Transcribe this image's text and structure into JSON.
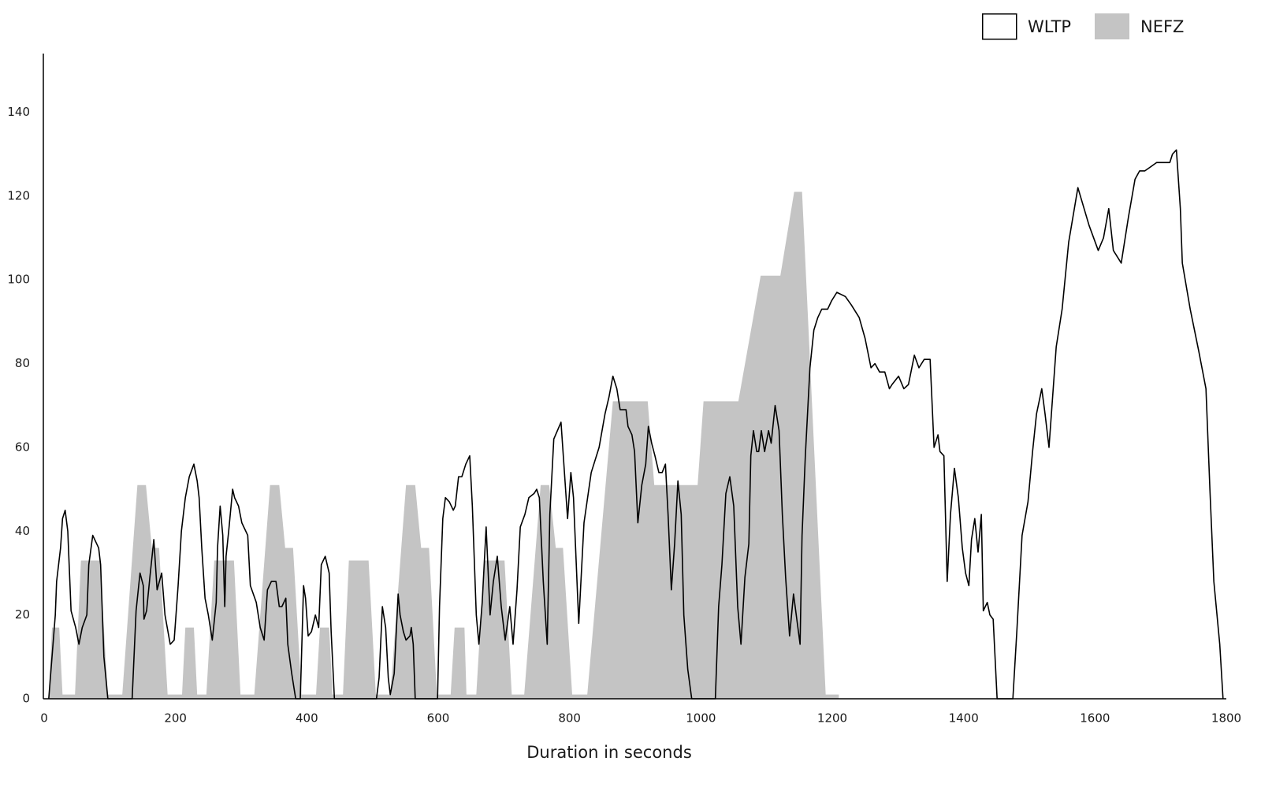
{
  "chart_data": {
    "type": "line",
    "xlabel": "Duration in seconds",
    "xlim": [
      0,
      1800
    ],
    "ylim": [
      0,
      154
    ],
    "xticks": [
      0,
      200,
      400,
      600,
      800,
      1000,
      1200,
      1400,
      1600,
      1800
    ],
    "yticks": [
      0,
      20,
      40,
      60,
      80,
      100,
      120,
      140
    ],
    "grid": false,
    "legend": "top-right",
    "series": [
      {
        "name": "WLTP",
        "type": "line",
        "color": "#000000",
        "x": [
          7,
          17,
          19,
          25,
          28,
          32,
          36,
          41,
          48,
          53,
          58,
          65,
          68,
          74,
          83,
          86,
          91,
          97,
          134,
          140,
          146,
          151,
          152,
          156,
          161,
          167,
          172,
          179,
          184,
          192,
          198,
          204,
          209,
          215,
          221,
          228,
          233,
          236,
          240,
          245,
          250,
          256,
          262,
          264,
          268,
          272,
          275,
          277,
          281,
          287,
          290,
          296,
          301,
          310,
          314,
          323,
          329,
          335,
          340,
          346,
          353,
          358,
          362,
          368,
          371,
          377,
          383,
          390,
          395,
          398,
          402,
          407,
          413,
          418,
          422,
          428,
          434,
          437,
          442,
          506,
          510,
          515,
          520,
          524,
          527,
          533,
          539,
          542,
          547,
          551,
          557,
          559,
          562,
          565,
          599,
          602,
          607,
          611,
          617,
          623,
          626,
          631,
          636,
          642,
          648,
          652,
          658,
          662,
          667,
          673,
          679,
          684,
          690,
          696,
          702,
          709,
          714,
          720,
          725,
          732,
          738,
          746,
          750,
          754,
          760,
          766,
          770,
          776,
          787,
          797,
          802,
          806,
          814,
          822,
          833,
          845,
          854,
          860,
          866,
          872,
          877,
          886,
          889,
          895,
          899,
          904,
          910,
          916,
          920,
          925,
          930,
          936,
          941,
          946,
          950,
          955,
          960,
          965,
          970,
          974,
          980,
          986,
          1022,
          1027,
          1032,
          1038,
          1044,
          1050,
          1056,
          1061,
          1067,
          1073,
          1076,
          1080,
          1085,
          1088,
          1092,
          1097,
          1103,
          1107,
          1113,
          1119,
          1124,
          1129,
          1135,
          1141,
          1146,
          1151,
          1154,
          1159,
          1166,
          1172,
          1178,
          1184,
          1193,
          1199,
          1207,
          1220,
          1229,
          1241,
          1250,
          1259,
          1265,
          1272,
          1280,
          1287,
          1291,
          1301,
          1309,
          1316,
          1325,
          1332,
          1340,
          1349,
          1355,
          1361,
          1364,
          1370,
          1375,
          1380,
          1386,
          1392,
          1398,
          1403,
          1408,
          1412,
          1417,
          1422,
          1427,
          1430,
          1436,
          1440,
          1445,
          1451,
          1475,
          1481,
          1489,
          1498,
          1505,
          1511,
          1519,
          1524,
          1530,
          1541,
          1550,
          1560,
          1574,
          1591,
          1605,
          1613,
          1621,
          1628,
          1640,
          1651,
          1661,
          1668,
          1676,
          1685,
          1694,
          1704,
          1714,
          1718,
          1724,
          1730,
          1733,
          1745,
          1758,
          1769,
          1775,
          1781,
          1790,
          1795
        ],
        "values": [
          0,
          20,
          28,
          36,
          43,
          45,
          40,
          21,
          17,
          13,
          17,
          20,
          32,
          39,
          36,
          32,
          10,
          0,
          0,
          21,
          30,
          27,
          19,
          21,
          29,
          38,
          26,
          30,
          20,
          13,
          14,
          27,
          40,
          48,
          53,
          56,
          52,
          48,
          36,
          24,
          20,
          14,
          23,
          36,
          46,
          39,
          22,
          34,
          40,
          50,
          48,
          46,
          42,
          39,
          27,
          23,
          17,
          14,
          26,
          28,
          28,
          22,
          22,
          24,
          13,
          6,
          0,
          0,
          27,
          24,
          15,
          16,
          20,
          17,
          32,
          34,
          30,
          16,
          0,
          0,
          5,
          22,
          17,
          5,
          1,
          6,
          25,
          20,
          16,
          14,
          15,
          17,
          13,
          0,
          0,
          22,
          43,
          48,
          47,
          45,
          46,
          53,
          53,
          56,
          58,
          46,
          20,
          13,
          23,
          41,
          20,
          28,
          34,
          22,
          14,
          22,
          13,
          26,
          41,
          44,
          48,
          49,
          50,
          48,
          28,
          13,
          44,
          62,
          66,
          43,
          54,
          48,
          18,
          42,
          54,
          60,
          68,
          72,
          77,
          74,
          69,
          69,
          65,
          63,
          59,
          42,
          51,
          56,
          65,
          61,
          58,
          54,
          54,
          56,
          44,
          26,
          37,
          52,
          44,
          20,
          7,
          0,
          0,
          22,
          32,
          49,
          53,
          46,
          22,
          13,
          29,
          37,
          58,
          64,
          59,
          59,
          64,
          59,
          64,
          61,
          70,
          64,
          44,
          29,
          15,
          25,
          19,
          13,
          39,
          58,
          79,
          88,
          91,
          93,
          93,
          95,
          97,
          96,
          94,
          91,
          86,
          79,
          80,
          78,
          78,
          74,
          75,
          77,
          74,
          75,
          82,
          79,
          81,
          81,
          60,
          63,
          59,
          58,
          28,
          44,
          55,
          48,
          36,
          30,
          27,
          38,
          43,
          35,
          44,
          21,
          23,
          20,
          19,
          0,
          0,
          16,
          39,
          47,
          59,
          68,
          74,
          68,
          60,
          84,
          93,
          109,
          122,
          113,
          107,
          110,
          117,
          107,
          104,
          115,
          124,
          126,
          126,
          127,
          128,
          128,
          128,
          130,
          131,
          117,
          104,
          93,
          83,
          74,
          50,
          28,
          13,
          0
        ]
      },
      {
        "name": "NEFZ",
        "type": "area",
        "color": "#c4c4c4",
        "x": [
          7,
          12,
          23,
          28,
          47,
          56,
          85,
          97,
          119,
          142,
          155,
          164,
          175,
          188,
          210,
          215,
          228,
          233,
          247,
          259,
          289,
          299,
          320,
          344,
          358,
          367,
          379,
          392,
          414,
          420,
          434,
          439,
          455,
          464,
          494,
          505,
          527,
          551,
          565,
          574,
          586,
          598,
          619,
          625,
          640,
          643,
          658,
          670,
          701,
          712,
          731,
          756,
          769,
          779,
          790,
          804,
          827,
          866,
          919,
          929,
          995,
          1004,
          1057,
          1091,
          1121,
          1142,
          1154,
          1190,
          1210
        ],
        "values": [
          1,
          17,
          17,
          1,
          1,
          33,
          33,
          1,
          1,
          51,
          51,
          36,
          36,
          1,
          1,
          17,
          17,
          1,
          1,
          33,
          33,
          1,
          1,
          51,
          51,
          36,
          36,
          1,
          1,
          17,
          17,
          1,
          1,
          33,
          33,
          1,
          1,
          51,
          51,
          36,
          36,
          1,
          1,
          17,
          17,
          1,
          1,
          33,
          33,
          1,
          1,
          51,
          51,
          36,
          36,
          1,
          1,
          71,
          71,
          51,
          51,
          71,
          71,
          101,
          101,
          121,
          121,
          1,
          1
        ]
      }
    ]
  }
}
